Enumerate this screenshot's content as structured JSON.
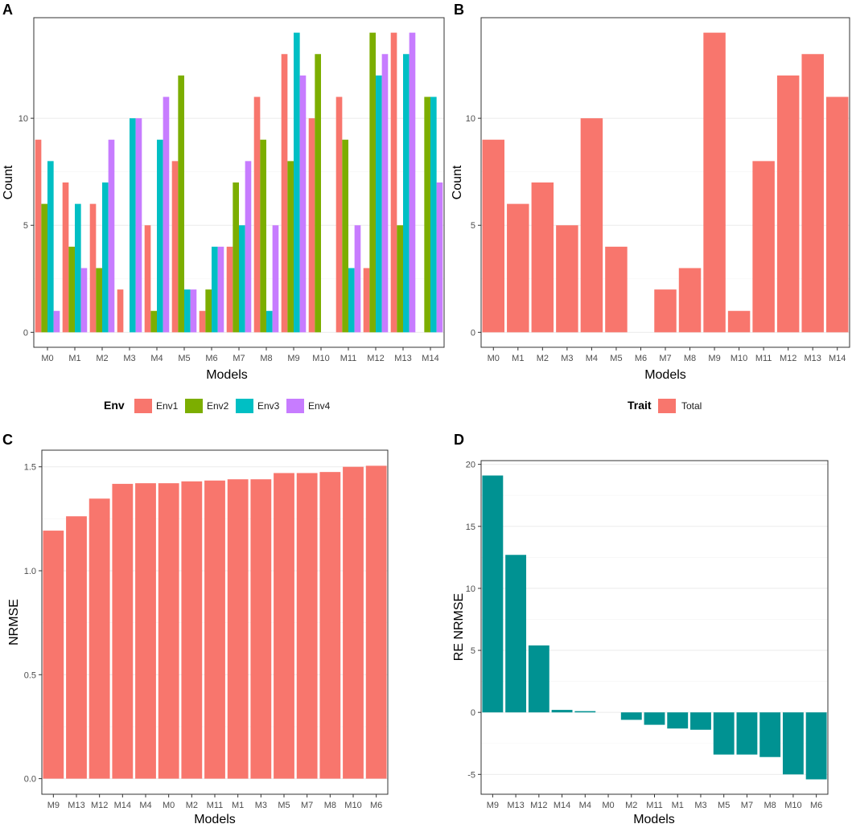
{
  "panels": {
    "A": {
      "letter": "A"
    },
    "B": {
      "letter": "B"
    },
    "C": {
      "letter": "C"
    },
    "D": {
      "letter": "D"
    }
  },
  "chart_data": [
    {
      "id": "A",
      "type": "bar",
      "categories": [
        "M0",
        "M1",
        "M2",
        "M3",
        "M4",
        "M5",
        "M6",
        "M7",
        "M8",
        "M9",
        "M10",
        "M11",
        "M12",
        "M13",
        "M14"
      ],
      "series": [
        {
          "name": "Env1",
          "color": "#F8766D",
          "values": [
            9,
            7,
            6,
            2,
            5,
            8,
            1,
            4,
            11,
            13,
            10,
            11,
            3,
            14,
            0
          ]
        },
        {
          "name": "Env2",
          "color": "#7CAE00",
          "values": [
            6,
            4,
            3,
            0,
            1,
            12,
            2,
            7,
            9,
            8,
            13,
            9,
            14,
            5,
            11
          ]
        },
        {
          "name": "Env3",
          "color": "#00BFC4",
          "values": [
            8,
            6,
            7,
            10,
            9,
            2,
            4,
            5,
            1,
            14,
            0,
            3,
            12,
            13,
            11
          ]
        },
        {
          "name": "Env4",
          "color": "#C77CFF",
          "values": [
            1,
            3,
            9,
            10,
            11,
            2,
            4,
            8,
            5,
            12,
            0,
            5,
            13,
            14,
            7
          ]
        }
      ],
      "ylim": [
        -0.7,
        14.7
      ],
      "yticks": [
        0,
        5,
        10
      ],
      "ytick_labels": [
        "0",
        "5",
        "10"
      ],
      "xlabel": "Models",
      "ylabel": "Count",
      "legend": {
        "title": "Env",
        "position": "bottom",
        "entries": [
          "Env1",
          "Env2",
          "Env3",
          "Env4"
        ]
      }
    },
    {
      "id": "B",
      "type": "bar",
      "categories": [
        "M0",
        "M1",
        "M2",
        "M3",
        "M4",
        "M5",
        "M6",
        "M7",
        "M8",
        "M9",
        "M10",
        "M11",
        "M12",
        "M13",
        "M14"
      ],
      "series": [
        {
          "name": "Total",
          "color": "#F8766D",
          "values": [
            9,
            6,
            7,
            5,
            10,
            4,
            0,
            2,
            3,
            14,
            1,
            8,
            12,
            13,
            11
          ]
        }
      ],
      "ylim": [
        -0.7,
        14.7
      ],
      "yticks": [
        0,
        5,
        10
      ],
      "ytick_labels": [
        "0",
        "5",
        "10"
      ],
      "xlabel": "Models",
      "ylabel": "Count",
      "legend": {
        "title": "Trait",
        "position": "bottom",
        "entries": [
          "Total"
        ]
      }
    },
    {
      "id": "C",
      "type": "bar",
      "categories": [
        "M9",
        "M13",
        "M12",
        "M14",
        "M4",
        "M0",
        "M2",
        "M11",
        "M1",
        "M3",
        "M5",
        "M7",
        "M8",
        "M10",
        "M6"
      ],
      "series": [
        {
          "name": "NRMSE",
          "color": "#F8766D",
          "values": [
            1.193,
            1.262,
            1.347,
            1.418,
            1.421,
            1.421,
            1.43,
            1.434,
            1.44,
            1.44,
            1.47,
            1.47,
            1.475,
            1.5,
            1.505
          ]
        }
      ],
      "ylim": [
        -0.075,
        1.58
      ],
      "yticks": [
        0,
        0.5,
        1.0,
        1.5
      ],
      "ytick_labels": [
        "0.0",
        "0.5",
        "1.0",
        "1.5"
      ],
      "xlabel": "Models",
      "ylabel": "NRMSE"
    },
    {
      "id": "D",
      "type": "bar",
      "categories": [
        "M9",
        "M13",
        "M12",
        "M14",
        "M4",
        "M0",
        "M2",
        "M11",
        "M1",
        "M3",
        "M5",
        "M7",
        "M8",
        "M10",
        "M6"
      ],
      "series": [
        {
          "name": "RE NRMSE",
          "color": "#009292",
          "values": [
            19.1,
            12.7,
            5.4,
            0.2,
            0.1,
            0.0,
            -0.6,
            -1.0,
            -1.3,
            -1.4,
            -3.4,
            -3.4,
            -3.6,
            -5.0,
            -5.4
          ]
        }
      ],
      "ylim": [
        -6.6,
        20.3
      ],
      "yticks": [
        -5,
        0,
        5,
        10,
        15,
        20
      ],
      "ytick_labels": [
        "-5",
        "0",
        "5",
        "10",
        "15",
        "20"
      ],
      "xlabel": "Models",
      "ylabel": "RE NRMSE"
    }
  ]
}
